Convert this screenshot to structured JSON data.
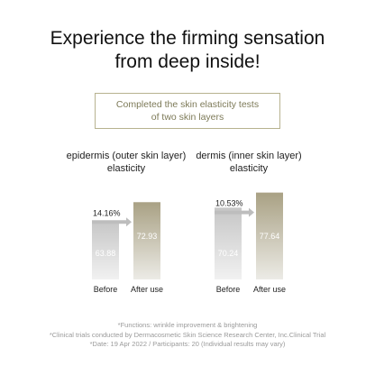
{
  "headline": {
    "line1": "Experience the firming sensation",
    "line2": "from deep inside!"
  },
  "test_box": {
    "line1": "Completed the skin elasticity tests",
    "line2": "of two skin layers"
  },
  "colors": {
    "before_bar_top": "#c6c6c6",
    "before_bar_bottom": "#f1f1f1",
    "after_bar_top": "#a9a184",
    "after_bar_bottom": "#ecebe6",
    "arrow": "#bdbdbd",
    "box_border": "#b7b28f",
    "box_text": "#7d7a58"
  },
  "chart_data": [
    {
      "type": "bar",
      "title_lines": [
        "epidermis (outer skin layer)",
        "elasticity"
      ],
      "categories": [
        "Before",
        "After use"
      ],
      "values": [
        63.88,
        72.93
      ],
      "value_labels": [
        "63.88",
        "72.93"
      ],
      "change_label": "14.16%"
    },
    {
      "type": "bar",
      "title_lines": [
        "dermis (inner skin layer)",
        "elasticity"
      ],
      "categories": [
        "Before",
        "After use"
      ],
      "values": [
        70.24,
        77.64
      ],
      "value_labels": [
        "70.24",
        "77.64"
      ],
      "change_label": "10.53%"
    }
  ],
  "footnotes": {
    "line1": "*Functions: wrinkle improvement & brightening",
    "line2": "*Clinical trials conducted by Dermacosmetic Skin Science Research Center, Inc.Clinical Trial",
    "line3": "*Date: 19 Apr 2022 / Participants: 20 (Individual results may vary)"
  }
}
